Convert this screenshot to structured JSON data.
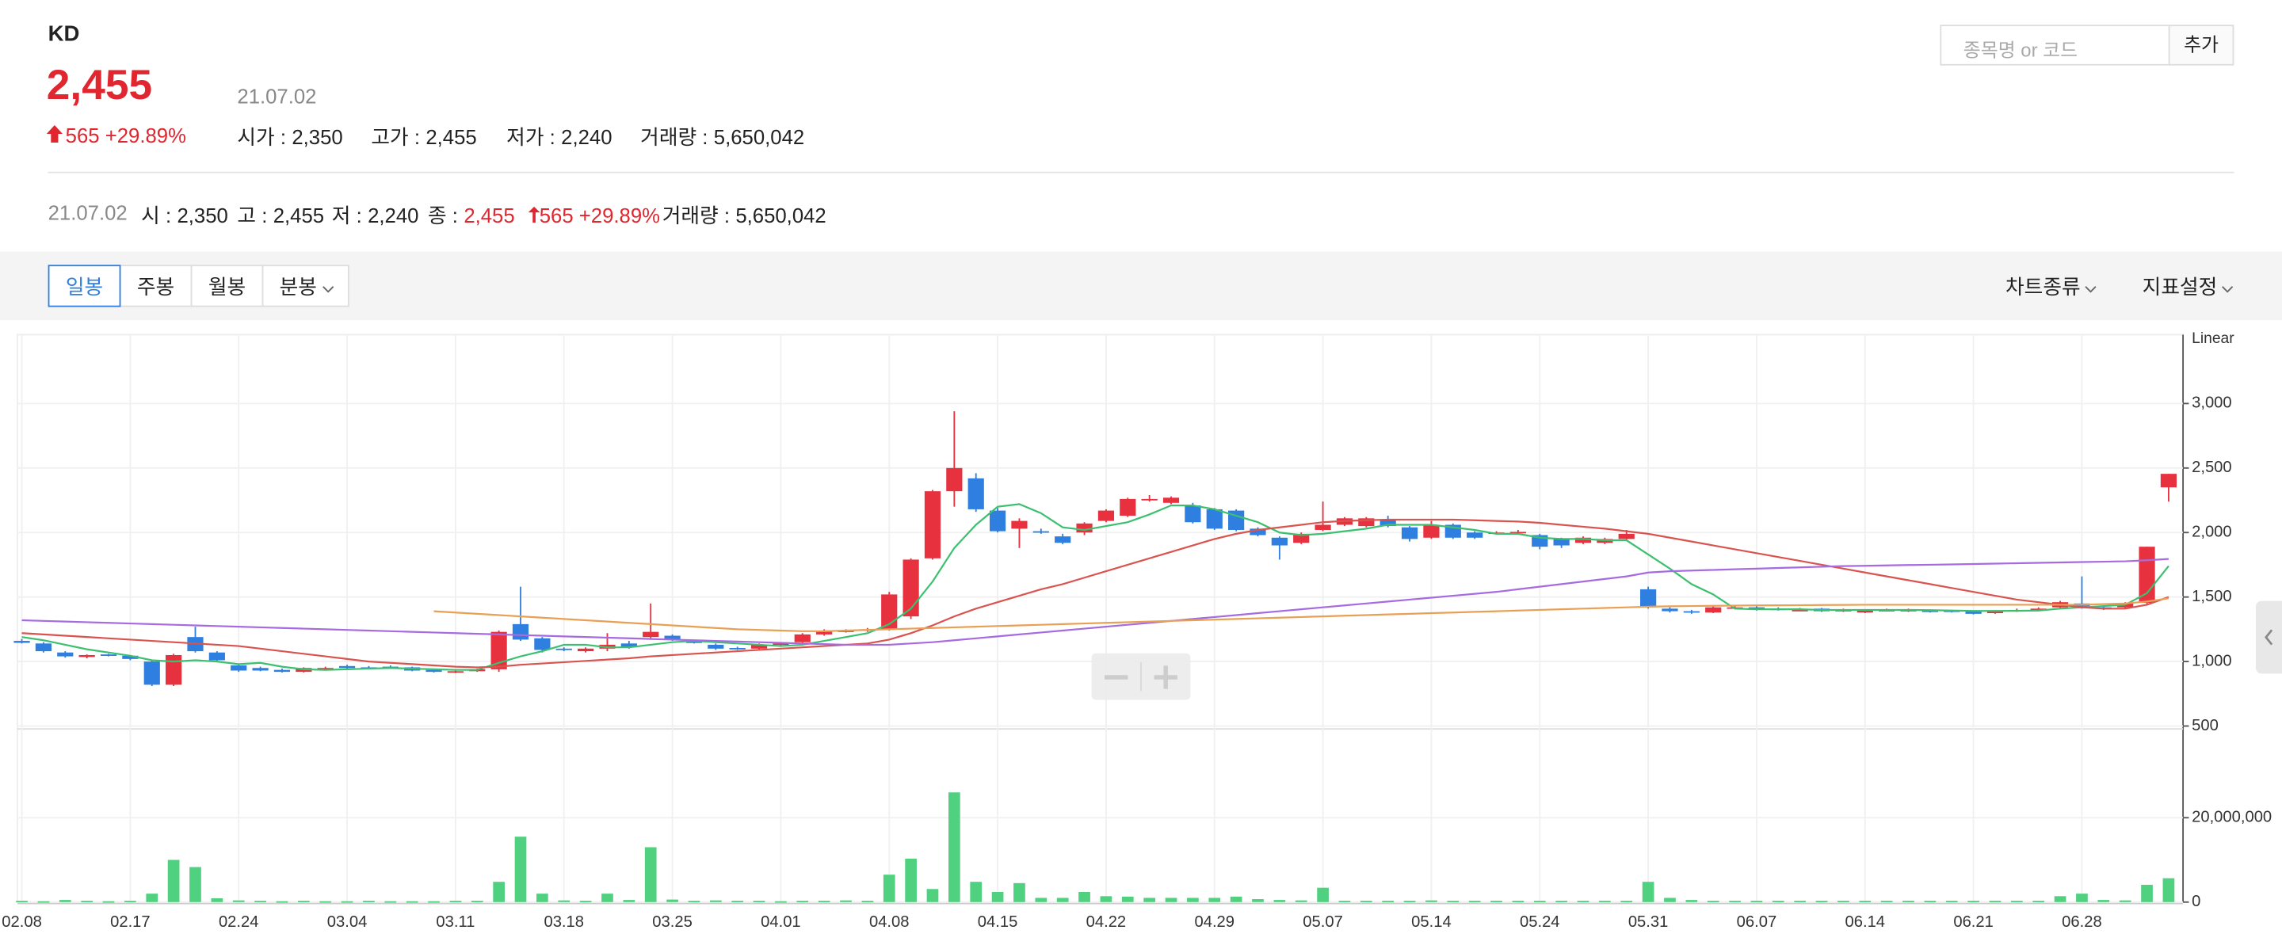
{
  "header": {
    "name": "KD",
    "price": "2,455",
    "date": "21.07.02",
    "change": "565",
    "change_pct": "+29.89%",
    "stats": [
      {
        "label": "시가 :",
        "value": "2,350"
      },
      {
        "label": "고가 :",
        "value": "2,455"
      },
      {
        "label": "저가 :",
        "value": "2,240"
      },
      {
        "label": "거래량 :",
        "value": "5,650,042"
      }
    ]
  },
  "info": {
    "date": "21.07.02",
    "items": [
      {
        "label": "시 :",
        "value": "2,350"
      },
      {
        "label": "고 :",
        "value": "2,455"
      },
      {
        "label": "저 :",
        "value": "2,240"
      },
      {
        "label": "종 :",
        "value": "2,455",
        "change": "565",
        "change_pct": "+29.89%"
      },
      {
        "label": "거래량 :",
        "value": "5,650,042"
      }
    ]
  },
  "search": {
    "placeholder": "종목명 or 코드",
    "button": "추가"
  },
  "toolbar": {
    "tabs": [
      "일봉",
      "주봉",
      "월봉",
      "분봉"
    ],
    "selected": 0,
    "menus": [
      "차트종류",
      "지표설정"
    ]
  },
  "chart_data": {
    "type": "candlestick",
    "scale_label": "Linear",
    "up_color": "#e8313f",
    "down_color": "#2f7fe0",
    "grid": true,
    "categories": [
      "02.08",
      null,
      null,
      null,
      null,
      "02.17",
      null,
      null,
      null,
      null,
      "02.24",
      null,
      null,
      null,
      null,
      "03.04",
      null,
      null,
      null,
      null,
      "03.11",
      null,
      null,
      null,
      null,
      "03.18",
      null,
      null,
      null,
      null,
      "03.25",
      null,
      null,
      null,
      null,
      "04.01",
      null,
      null,
      null,
      null,
      "04.08",
      null,
      null,
      null,
      null,
      "04.15",
      null,
      null,
      null,
      null,
      "04.22",
      null,
      null,
      null,
      null,
      "04.29",
      null,
      null,
      null,
      null,
      "05.07",
      null,
      null,
      null,
      null,
      "05.14",
      null,
      null,
      null,
      null,
      "05.24",
      null,
      null,
      null,
      null,
      "05.31",
      null,
      null,
      null,
      null,
      "06.07",
      null,
      null,
      null,
      null,
      "06.14",
      null,
      null,
      null,
      null,
      "06.21",
      null,
      null,
      null,
      null,
      "06.28",
      null,
      null,
      null,
      null
    ],
    "open": [
      1160,
      1140,
      1070,
      1035,
      1055,
      1045,
      1000,
      820,
      1190,
      1070,
      970,
      950,
      935,
      920,
      935,
      965,
      955,
      960,
      955,
      935,
      915,
      925,
      940,
      1290,
      1180,
      1100,
      1080,
      1100,
      1140,
      1190,
      1200,
      1155,
      1130,
      1105,
      1100,
      1135,
      1150,
      1210,
      1235,
      1240,
      1250,
      1350,
      1800,
      2320,
      2420,
      2170,
      2030,
      2010,
      1970,
      2000,
      2090,
      2130,
      2250,
      2230,
      2210,
      2180,
      2170,
      2030,
      1960,
      1920,
      2020,
      2060,
      2050,
      2100,
      2040,
      1960,
      2060,
      2000,
      1995,
      2000,
      1980,
      1950,
      1920,
      1920,
      1950,
      1560,
      1410,
      1390,
      1380,
      1415,
      1420,
      1410,
      1400,
      1410,
      1395,
      1380,
      1400,
      1395,
      1395,
      1395,
      1390,
      1375,
      1390,
      1400,
      1420,
      1450,
      1420,
      1420,
      1455,
      2350
    ],
    "high": [
      1175,
      1150,
      1080,
      1055,
      1060,
      1050,
      1010,
      1060,
      1270,
      1080,
      980,
      960,
      945,
      955,
      960,
      975,
      965,
      970,
      960,
      940,
      935,
      945,
      1240,
      1580,
      1190,
      1110,
      1110,
      1220,
      1160,
      1450,
      1210,
      1165,
      1140,
      1115,
      1140,
      1150,
      1220,
      1250,
      1250,
      1260,
      1540,
      1800,
      2330,
      2940,
      2460,
      2190,
      2110,
      2030,
      1990,
      2080,
      2180,
      2270,
      2290,
      2280,
      2230,
      2190,
      2180,
      2040,
      1970,
      2000,
      2240,
      2120,
      2120,
      2130,
      2050,
      2090,
      2070,
      2010,
      2010,
      2020,
      1990,
      1960,
      1970,
      1960,
      2020,
      1580,
      1420,
      1400,
      1430,
      1430,
      1430,
      1420,
      1415,
      1415,
      1410,
      1405,
      1410,
      1410,
      1400,
      1400,
      1395,
      1395,
      1410,
      1420,
      1470,
      1660,
      1430,
      1460,
      1890,
      2455
    ],
    "low": [
      1140,
      1070,
      1030,
      1025,
      1040,
      1010,
      810,
      810,
      1070,
      1000,
      920,
      925,
      915,
      915,
      930,
      945,
      945,
      945,
      925,
      915,
      910,
      920,
      920,
      1160,
      1070,
      1080,
      1070,
      1080,
      1100,
      1170,
      1160,
      1140,
      1090,
      1090,
      1090,
      1125,
      1140,
      1200,
      1225,
      1230,
      1240,
      1330,
      1790,
      2200,
      2160,
      2000,
      1880,
      1990,
      1910,
      1980,
      2080,
      2120,
      2240,
      2220,
      2070,
      2020,
      2010,
      1970,
      1790,
      1910,
      2010,
      2050,
      2040,
      2040,
      1930,
      1950,
      1950,
      1950,
      1990,
      1990,
      1870,
      1880,
      1910,
      1910,
      1940,
      1410,
      1380,
      1370,
      1375,
      1405,
      1395,
      1395,
      1390,
      1385,
      1385,
      1375,
      1390,
      1385,
      1380,
      1380,
      1365,
      1370,
      1385,
      1395,
      1410,
      1410,
      1400,
      1410,
      1440,
      2240
    ],
    "close": [
      1145,
      1080,
      1040,
      1050,
      1045,
      1020,
      820,
      1050,
      1080,
      1010,
      930,
      930,
      920,
      950,
      950,
      950,
      950,
      950,
      930,
      920,
      925,
      940,
      1230,
      1170,
      1090,
      1090,
      1100,
      1130,
      1110,
      1230,
      1170,
      1150,
      1100,
      1100,
      1130,
      1140,
      1210,
      1240,
      1240,
      1250,
      1520,
      1790,
      2320,
      2500,
      2180,
      2010,
      2090,
      2000,
      1920,
      2070,
      2170,
      2260,
      2260,
      2270,
      2080,
      2030,
      2020,
      1980,
      1900,
      1990,
      2060,
      2110,
      2110,
      2050,
      1950,
      2060,
      1960,
      1960,
      2000,
      2005,
      1890,
      1900,
      1960,
      1950,
      1990,
      1420,
      1390,
      1380,
      1420,
      1420,
      1400,
      1405,
      1400,
      1390,
      1400,
      1400,
      1400,
      1400,
      1390,
      1385,
      1370,
      1390,
      1400,
      1410,
      1460,
      1420,
      1410,
      1450,
      1890,
      2455
    ],
    "series": [
      {
        "color": "#3cc070",
        "values": [
          1190,
          1165,
          1130,
          1095,
          1070,
          1045,
          1010,
          1000,
          1010,
          1000,
          980,
          990,
          960,
          940,
          935,
          940,
          945,
          950,
          945,
          940,
          935,
          935,
          990,
          1040,
          1080,
          1130,
          1130,
          1110,
          1110,
          1130,
          1150,
          1160,
          1150,
          1140,
          1130,
          1120,
          1130,
          1160,
          1190,
          1220,
          1290,
          1410,
          1620,
          1880,
          2060,
          2200,
          2220,
          2150,
          2040,
          2020,
          2050,
          2080,
          2140,
          2210,
          2210,
          2180,
          2130,
          2080,
          2000,
          1980,
          1990,
          2010,
          2030,
          2060,
          2060,
          2060,
          2040,
          2020,
          1990,
          1990,
          1960,
          1950,
          1950,
          1940,
          1940,
          1830,
          1720,
          1600,
          1520,
          1410,
          1405,
          1405,
          1405,
          1400,
          1400,
          1400,
          1400,
          1400,
          1398,
          1395,
          1392,
          1392,
          1393,
          1395,
          1410,
          1420,
          1430,
          1440,
          1530,
          1740
        ]
      },
      {
        "color": "#d9534f",
        "values": [
          1220,
          1210,
          1200,
          1190,
          1180,
          1170,
          1160,
          1150,
          1140,
          1130,
          1120,
          1100,
          1080,
          1060,
          1040,
          1020,
          1000,
          990,
          980,
          970,
          960,
          955,
          960,
          975,
          985,
          995,
          1005,
          1015,
          1025,
          1040,
          1050,
          1060,
          1070,
          1080,
          1090,
          1100,
          1110,
          1120,
          1130,
          1140,
          1170,
          1220,
          1280,
          1350,
          1410,
          1460,
          1510,
          1560,
          1600,
          1650,
          1700,
          1750,
          1800,
          1850,
          1900,
          1950,
          1990,
          2020,
          2040,
          2060,
          2080,
          2090,
          2095,
          2100,
          2100,
          2100,
          2100,
          2095,
          2090,
          2085,
          2075,
          2060,
          2045,
          2030,
          2010,
          1990,
          1960,
          1930,
          1900,
          1870,
          1840,
          1810,
          1780,
          1750,
          1720,
          1690,
          1660,
          1630,
          1600,
          1570,
          1540,
          1510,
          1480,
          1460,
          1440,
          1420,
          1410,
          1410,
          1440,
          1500
        ]
      },
      {
        "color": "#a66be0",
        "values": [
          1320,
          1315,
          1310,
          1305,
          1300,
          1295,
          1290,
          1285,
          1280,
          1275,
          1270,
          1265,
          1260,
          1255,
          1250,
          1245,
          1240,
          1235,
          1230,
          1225,
          1220,
          1215,
          1210,
          1205,
          1200,
          1195,
          1190,
          1185,
          1180,
          1175,
          1170,
          1165,
          1160,
          1155,
          1150,
          1145,
          1140,
          1135,
          1130,
          1130,
          1130,
          1140,
          1150,
          1165,
          1180,
          1195,
          1210,
          1225,
          1240,
          1255,
          1270,
          1285,
          1300,
          1315,
          1330,
          1345,
          1360,
          1375,
          1390,
          1405,
          1420,
          1435,
          1450,
          1465,
          1480,
          1495,
          1510,
          1525,
          1540,
          1560,
          1580,
          1600,
          1620,
          1640,
          1660,
          1690,
          1700,
          1705,
          1710,
          1715,
          1720,
          1725,
          1730,
          1735,
          1740,
          1742,
          1745,
          1748,
          1750,
          1753,
          1756,
          1759,
          1762,
          1765,
          1768,
          1771,
          1774,
          1777,
          1785,
          1795
        ]
      },
      {
        "color": "#e8a055",
        "values": [
          null,
          null,
          null,
          null,
          null,
          null,
          null,
          null,
          null,
          null,
          null,
          null,
          null,
          null,
          null,
          null,
          null,
          null,
          null,
          1390,
          1380,
          1370,
          1360,
          1350,
          1340,
          1330,
          1320,
          1310,
          1300,
          1290,
          1280,
          1270,
          1260,
          1250,
          1245,
          1240,
          1235,
          1235,
          1240,
          1245,
          1250,
          1255,
          1260,
          1265,
          1270,
          1275,
          1280,
          1285,
          1290,
          1295,
          1300,
          1305,
          1310,
          1315,
          1320,
          1325,
          1330,
          1335,
          1340,
          1345,
          1350,
          1355,
          1360,
          1365,
          1370,
          1375,
          1380,
          1385,
          1390,
          1395,
          1400,
          1405,
          1410,
          1415,
          1420,
          1425,
          1428,
          1430,
          1432,
          1434,
          1435,
          1436,
          1437,
          1438,
          1439,
          1440,
          1440,
          1440,
          1440,
          1440,
          1440,
          1440,
          1440,
          1440,
          1440,
          1440,
          1445,
          1450,
          1465,
          1490
        ]
      }
    ],
    "ylim": [
      500,
      3500
    ],
    "yticks": [
      500,
      {
        "value": 1000,
        "label": "1,000"
      },
      {
        "value": 1500,
        "label": "1,500"
      },
      {
        "value": 2000,
        "label": "2,000"
      },
      {
        "value": 2500,
        "label": "2,500"
      },
      {
        "value": 3000,
        "label": "3,000"
      }
    ],
    "volume": {
      "color": "#4fd17f",
      "ylim": [
        0,
        40000000
      ],
      "yticks": [
        0,
        {
          "value": 20000000,
          "label": "20,000,000"
        }
      ],
      "values": [
        300000,
        200000,
        500000,
        300000,
        200000,
        300000,
        2000000,
        10000000,
        8300000,
        900000,
        400000,
        300000,
        200000,
        300000,
        200000,
        200000,
        300000,
        200000,
        200000,
        200000,
        300000,
        300000,
        4800000,
        15500000,
        2000000,
        400000,
        300000,
        2000000,
        500000,
        13000000,
        600000,
        300000,
        400000,
        300000,
        300000,
        200000,
        300000,
        300000,
        400000,
        300000,
        6500000,
        10300000,
        3100000,
        26000000,
        4800000,
        2400000,
        4500000,
        1000000,
        1000000,
        2400000,
        1400000,
        1300000,
        1000000,
        1000000,
        1000000,
        1000000,
        1300000,
        700000,
        500000,
        400000,
        3400000,
        300000,
        300000,
        300000,
        300000,
        400000,
        300000,
        300000,
        300000,
        300000,
        300000,
        300000,
        300000,
        300000,
        300000,
        4800000,
        1000000,
        500000,
        300000,
        300000,
        300000,
        300000,
        300000,
        300000,
        300000,
        300000,
        300000,
        300000,
        300000,
        300000,
        300000,
        300000,
        300000,
        300000,
        1400000,
        2000000,
        500000,
        400000,
        4100000,
        5650042
      ]
    }
  }
}
